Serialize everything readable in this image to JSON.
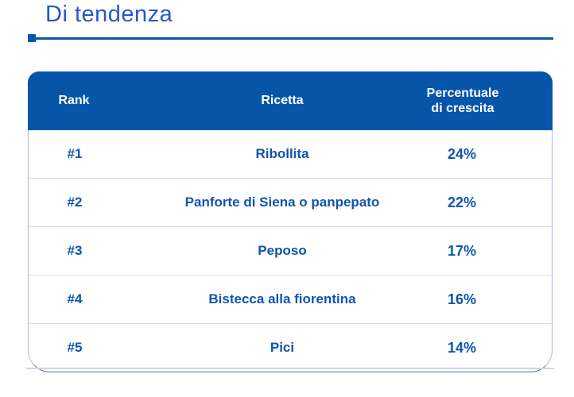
{
  "page": {
    "title": "Di tendenza"
  },
  "colors": {
    "header_bg": "#0755A9",
    "title_text": "#2857C9",
    "body_text": "#1254AE",
    "underline": "#0A55A8",
    "row_divider": "#DCDCDC",
    "card_side_border": "#AEBDDD",
    "card_bottom_border": "#4667BE",
    "baseline_gray": "#D6D6D6"
  },
  "table": {
    "columns": {
      "rank": "Rank",
      "ricetta": "Ricetta",
      "crescita": "Percentuale\ndi crescita"
    },
    "rows": [
      {
        "rank": "#1",
        "ricetta": "Ribollita",
        "crescita": "24%"
      },
      {
        "rank": "#2",
        "ricetta": "Panforte di Siena o panpepato",
        "crescita": "22%"
      },
      {
        "rank": "#3",
        "ricetta": "Peposo",
        "crescita": "17%"
      },
      {
        "rank": "#4",
        "ricetta": "Bistecca alla fiorentina",
        "crescita": "16%"
      },
      {
        "rank": "#5",
        "ricetta": "Pici",
        "crescita": "14%"
      }
    ]
  }
}
